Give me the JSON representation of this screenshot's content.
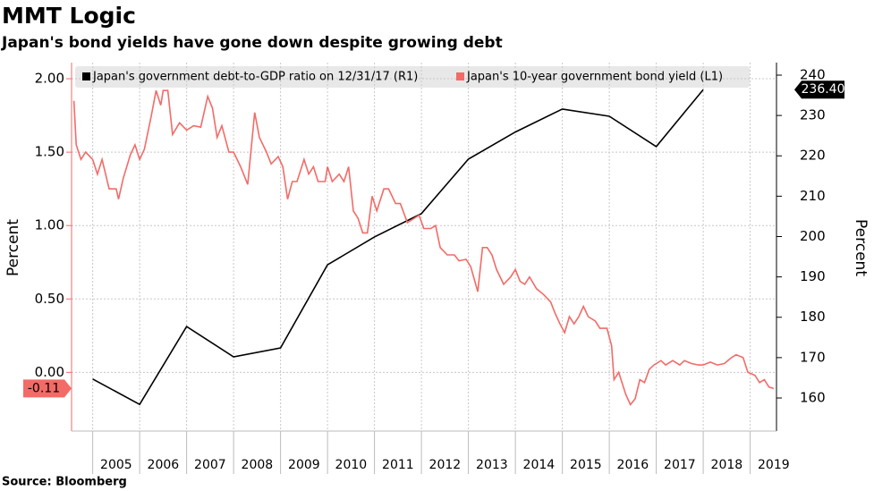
{
  "chart_data": {
    "type": "line",
    "title": "MMT Logic",
    "subtitle": "Japan's bond yields have gone down despite growing debt",
    "source": "Source: Bloomberg",
    "y_label": "Percent",
    "y2_label": "Percent",
    "xlim": [
      2004.55,
      2019.56
    ],
    "xticks": [
      2005,
      2006,
      2007,
      2008,
      2009,
      2010,
      2011,
      2012,
      2013,
      2014,
      2015,
      2016,
      2017,
      2018,
      2019
    ],
    "ylim": [
      -0.4,
      2.11
    ],
    "yticks": [
      {
        "value": 0,
        "label": "0.00"
      },
      {
        "value": 0.5,
        "label": "0.50"
      },
      {
        "value": 1,
        "label": "1.00"
      },
      {
        "value": 1.5,
        "label": "1.50"
      },
      {
        "value": 2,
        "label": "2.00"
      }
    ],
    "y2lim": [
      151.8,
      243.1
    ],
    "y2ticks": [
      160,
      170,
      180,
      190,
      200,
      210,
      220,
      230,
      240
    ],
    "grid": true,
    "legend": "top",
    "series": [
      {
        "name": "Japan's government debt-to-GDP ratio on 12/31/17 (R1)",
        "color": "#000000",
        "axis": "y2",
        "x": [
          2005,
          2006,
          2007,
          2008,
          2009,
          2010,
          2011,
          2012,
          2013,
          2014,
          2015,
          2016,
          2017,
          2018
        ],
        "values": [
          164.7,
          158.4,
          177.7,
          170.2,
          172.4,
          193.0,
          199.9,
          205.7,
          219.2,
          225.9,
          231.6,
          229.8,
          222.3,
          236.4
        ],
        "end_label": {
          "value": 236.4,
          "label": "236.40"
        }
      },
      {
        "name": "Japan's 10-year government bond yield (L1)",
        "color": "#f26b67",
        "axis": "y",
        "x": [
          2004.6,
          2004.65,
          2004.75,
          2004.85,
          2005.0,
          2005.1,
          2005.2,
          2005.35,
          2005.5,
          2005.55,
          2005.65,
          2005.8,
          2005.9,
          2006.0,
          2006.1,
          2006.25,
          2006.35,
          2006.45,
          2006.5,
          2006.6,
          2006.7,
          2006.85,
          2007.0,
          2007.15,
          2007.3,
          2007.45,
          2007.55,
          2007.65,
          2007.75,
          2007.9,
          2008.0,
          2008.15,
          2008.3,
          2008.45,
          2008.55,
          2008.7,
          2008.8,
          2008.95,
          2009.05,
          2009.15,
          2009.25,
          2009.35,
          2009.5,
          2009.6,
          2009.7,
          2009.8,
          2009.95,
          2010.0,
          2010.1,
          2010.25,
          2010.35,
          2010.45,
          2010.55,
          2010.65,
          2010.75,
          2010.85,
          2010.95,
          2011.05,
          2011.2,
          2011.3,
          2011.45,
          2011.55,
          2011.7,
          2011.85,
          2011.95,
          2012.05,
          2012.2,
          2012.3,
          2012.4,
          2012.55,
          2012.7,
          2012.8,
          2012.95,
          2013.05,
          2013.2,
          2013.3,
          2013.4,
          2013.5,
          2013.6,
          2013.75,
          2013.9,
          2014.0,
          2014.1,
          2014.2,
          2014.3,
          2014.45,
          2014.6,
          2014.75,
          2014.85,
          2014.95,
          2015.05,
          2015.15,
          2015.25,
          2015.35,
          2015.45,
          2015.55,
          2015.7,
          2015.8,
          2015.95,
          2016.05,
          2016.1,
          2016.2,
          2016.35,
          2016.45,
          2016.55,
          2016.65,
          2016.75,
          2016.85,
          2016.95,
          2017.1,
          2017.2,
          2017.35,
          2017.5,
          2017.6,
          2017.75,
          2017.9,
          2018.0,
          2018.15,
          2018.3,
          2018.45,
          2018.6,
          2018.7,
          2018.85,
          2018.95,
          2019.1,
          2019.2,
          2019.3,
          2019.4,
          2019.5
        ],
        "values": [
          1.85,
          1.55,
          1.45,
          1.5,
          1.45,
          1.35,
          1.45,
          1.25,
          1.25,
          1.18,
          1.32,
          1.48,
          1.55,
          1.45,
          1.52,
          1.75,
          1.92,
          1.82,
          1.92,
          1.92,
          1.62,
          1.7,
          1.65,
          1.68,
          1.67,
          1.88,
          1.8,
          1.6,
          1.68,
          1.5,
          1.5,
          1.4,
          1.28,
          1.77,
          1.6,
          1.5,
          1.42,
          1.47,
          1.4,
          1.18,
          1.3,
          1.3,
          1.45,
          1.35,
          1.4,
          1.3,
          1.3,
          1.4,
          1.3,
          1.35,
          1.3,
          1.4,
          1.1,
          1.05,
          0.95,
          0.95,
          1.2,
          1.1,
          1.25,
          1.25,
          1.15,
          1.15,
          1.02,
          1.05,
          1.07,
          0.98,
          0.98,
          1.0,
          0.85,
          0.8,
          0.8,
          0.76,
          0.77,
          0.72,
          0.55,
          0.85,
          0.85,
          0.8,
          0.7,
          0.6,
          0.65,
          0.7,
          0.62,
          0.6,
          0.65,
          0.57,
          0.53,
          0.48,
          0.4,
          0.33,
          0.27,
          0.38,
          0.33,
          0.38,
          0.45,
          0.38,
          0.35,
          0.3,
          0.3,
          0.18,
          -0.05,
          0.0,
          -0.15,
          -0.22,
          -0.18,
          -0.05,
          -0.07,
          0.02,
          0.05,
          0.08,
          0.05,
          0.08,
          0.05,
          0.08,
          0.06,
          0.05,
          0.05,
          0.07,
          0.05,
          0.06,
          0.1,
          0.12,
          0.1,
          0.0,
          -0.02,
          -0.07,
          -0.05,
          -0.1,
          -0.11
        ],
        "end_label": -0.11
      }
    ]
  }
}
